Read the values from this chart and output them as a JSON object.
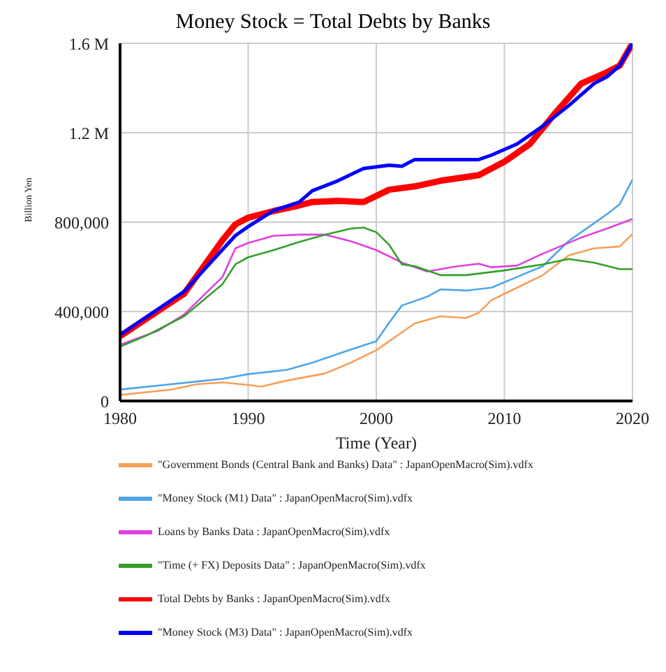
{
  "chart_data": {
    "type": "line",
    "title": "Money Stock = Total Debts by Banks",
    "xlabel": "Time (Year)",
    "ylabel": "Billion Yen",
    "xlim": [
      1980,
      2020
    ],
    "xticks": [
      1980,
      1990,
      2000,
      2010,
      2020
    ],
    "ylim": [
      0,
      1600000
    ],
    "yticks": [
      0,
      {
        "value": 400000,
        "label": "400,000"
      },
      {
        "value": 800000,
        "label": "800,000"
      },
      {
        "value": 1200000,
        "label": "1.2 M"
      },
      {
        "value": 1600000,
        "label": "1.6 M"
      }
    ],
    "grid": true,
    "legend": "bottom",
    "series": [
      {
        "name": "\"Money Stock (M3) Data\" : JapanOpenMacro(Sim).vdfx",
        "color": "#0000ff",
        "x": [
          1980,
          1985,
          1989,
          1990,
          1992,
          1994,
          1995,
          1997,
          1999,
          2001,
          2002,
          2003,
          2005,
          2008,
          2009,
          2011,
          2013,
          2015,
          2017,
          2018,
          2019,
          2020
        ],
        "values": [
          296000,
          490000,
          740000,
          780000,
          852000,
          890000,
          940000,
          985000,
          1040000,
          1055000,
          1050000,
          1080000,
          1080000,
          1080000,
          1100000,
          1150000,
          1230000,
          1320000,
          1420000,
          1450000,
          1500000,
          1600000
        ]
      },
      {
        "name": "Total Debts by Banks : JapanOpenMacro(Sim).vdfx",
        "color": "#ff0000",
        "x": [
          1980,
          1985,
          1988,
          1989,
          1990,
          1992,
          1994,
          1995,
          1997,
          1999,
          2001,
          2003,
          2005,
          2008,
          2010,
          2012,
          2014,
          2016,
          2018,
          2019,
          2020
        ],
        "values": [
          290000,
          480000,
          720000,
          790000,
          820000,
          850000,
          875000,
          890000,
          895000,
          890000,
          945000,
          960000,
          985000,
          1010000,
          1070000,
          1150000,
          1290000,
          1420000,
          1470000,
          1500000,
          1600000
        ]
      },
      {
        "name": "\"Time (+ FX) Deposits Data\" : JapanOpenMacro(Sim).vdfx",
        "color": "#33a02c",
        "x": [
          1980,
          1982,
          1985,
          1988,
          1989,
          1990,
          1992,
          1994,
          1996,
          1998,
          1999,
          2000,
          2001,
          2002,
          2003,
          2005,
          2007,
          2010,
          2013,
          2015,
          2017,
          2019,
          2020
        ],
        "values": [
          243000,
          291000,
          379000,
          523000,
          611000,
          643000,
          675000,
          712000,
          744000,
          771000,
          776000,
          755000,
          699000,
          611000,
          603000,
          563000,
          563000,
          584000,
          611000,
          635000,
          619000,
          590000,
          590000
        ]
      },
      {
        "name": "Loans by Banks Data : JapanOpenMacro(Sim).vdfx",
        "color": "#e040e0",
        "x": [
          1980,
          1983,
          1985,
          1988,
          1989,
          1990,
          1992,
          1994,
          1996,
          1998,
          2000,
          2002,
          2004,
          2006,
          2008,
          2009,
          2011,
          2013,
          2016,
          2018,
          2020
        ],
        "values": [
          251000,
          315000,
          387000,
          555000,
          683000,
          707000,
          739000,
          744000,
          744000,
          715000,
          675000,
          619000,
          579000,
          600000,
          614000,
          598000,
          606000,
          659000,
          731000,
          771000,
          814000
        ]
      },
      {
        "name": "\"Money Stock (M1) Data\" : JapanOpenMacro(Sim).vdfx",
        "color": "#4da6e8",
        "x": [
          1980,
          1984,
          1988,
          1990,
          1993,
          1995,
          1998,
          2000,
          2001,
          2002,
          2004,
          2005,
          2007,
          2009,
          2011,
          2013,
          2015,
          2017,
          2018,
          2019,
          2020
        ],
        "values": [
          51000,
          75000,
          99000,
          120000,
          139000,
          171000,
          230000,
          267000,
          350000,
          427000,
          467000,
          499000,
          494000,
          507000,
          555000,
          603000,
          715000,
          795000,
          835000,
          880000,
          990000
        ]
      },
      {
        "name": "\"Government Bonds (Central Bank and Banks) Data\" : JapanOpenMacro(Sim).vdfx",
        "color": "#f5a05a",
        "x": [
          1980,
          1984,
          1986,
          1988,
          1990,
          1991,
          1993,
          1996,
          1998,
          2000,
          2002,
          2003,
          2005,
          2007,
          2008,
          2009,
          2011,
          2013,
          2015,
          2017,
          2019,
          2020
        ],
        "values": [
          27000,
          51000,
          75000,
          83000,
          72000,
          64000,
          91000,
          123000,
          171000,
          227000,
          307000,
          347000,
          379000,
          371000,
          395000,
          451000,
          507000,
          563000,
          651000,
          683000,
          691000,
          747000
        ]
      }
    ]
  }
}
